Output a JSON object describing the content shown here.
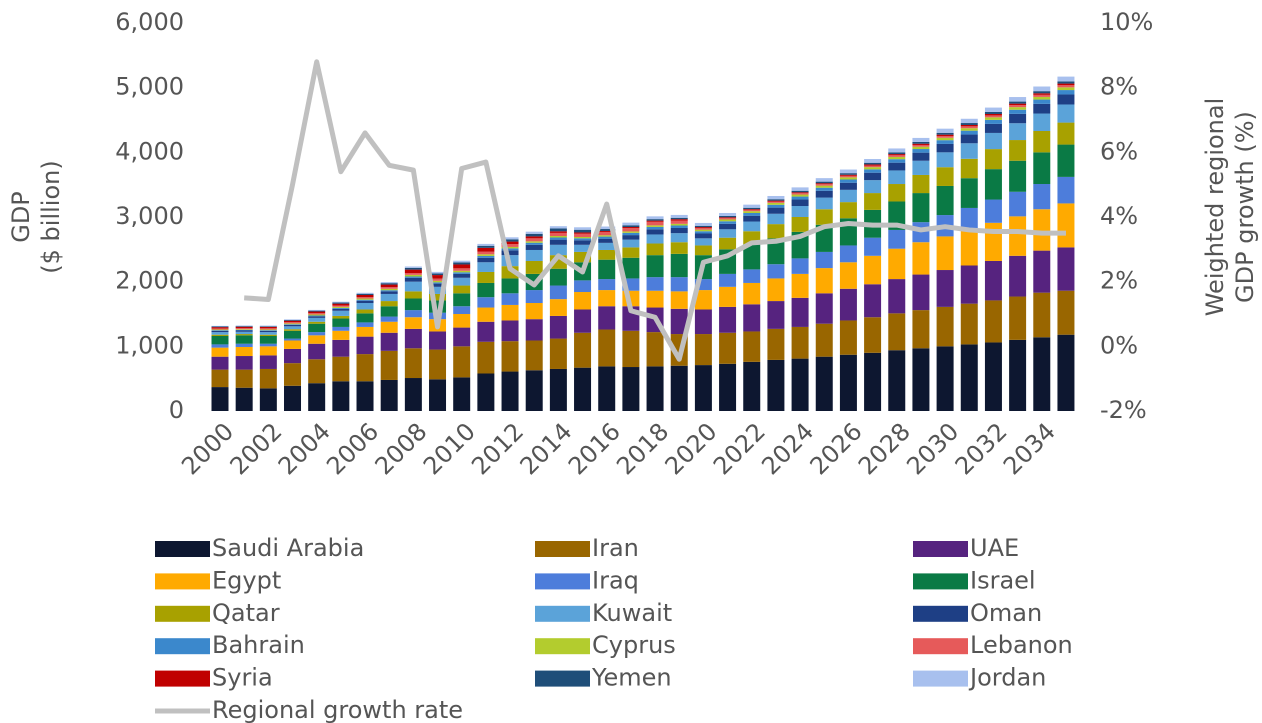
{
  "chart_data": {
    "type": "stacked-bar-line",
    "ylabel": [
      "GDP",
      "($ billion)"
    ],
    "y2label": [
      "Weighted regional",
      "GDP growth (%)"
    ],
    "categories": [
      "2000",
      null,
      "2002",
      null,
      "2004",
      null,
      "2006",
      null,
      "2008",
      null,
      "2010",
      null,
      "2012",
      null,
      "2014",
      null,
      "2016",
      null,
      "2018",
      null,
      "2020",
      null,
      "2022",
      null,
      "2024",
      null,
      "2026",
      null,
      "2028",
      null,
      "2030",
      null,
      "2032",
      null,
      "2034",
      null
    ],
    "ylim": [
      0,
      6000
    ],
    "yticks": [
      0,
      {
        "value": 1000,
        "label": "1,000"
      },
      {
        "value": 2000,
        "label": "2,000"
      },
      {
        "value": 3000,
        "label": "3,000"
      },
      {
        "value": 4000,
        "label": "4,000"
      },
      {
        "value": 5000,
        "label": "5,000"
      },
      {
        "value": 6000,
        "label": "6,000"
      }
    ],
    "y2lim": [
      -2,
      10
    ],
    "y2ticks": [
      {
        "value": -2,
        "label": "-2%"
      },
      {
        "value": 0,
        "label": "0%"
      },
      {
        "value": 2,
        "label": "2%"
      },
      {
        "value": 4,
        "label": "4%"
      },
      {
        "value": 6,
        "label": "6%"
      },
      {
        "value": 8,
        "label": "8%"
      },
      {
        "value": 10,
        "label": "10%"
      }
    ],
    "series": [
      {
        "name": "Saudi Arabia",
        "color": "#0d1730",
        "values": [
          370,
          360,
          350,
          390,
          430,
          460,
          460,
          480,
          510,
          490,
          520,
          580,
          610,
          630,
          650,
          670,
          690,
          680,
          690,
          700,
          710,
          730,
          760,
          790,
          810,
          840,
          870,
          900,
          940,
          970,
          1000,
          1030,
          1060,
          1100,
          1140,
          1180
        ]
      },
      {
        "name": "Iran",
        "color": "#996600",
        "values": [
          270,
          280,
          300,
          350,
          370,
          380,
          420,
          450,
          460,
          460,
          480,
          490,
          470,
          460,
          470,
          540,
          570,
          560,
          530,
          490,
          480,
          480,
          470,
          480,
          490,
          510,
          530,
          550,
          570,
          590,
          610,
          630,
          650,
          670,
          690,
          680
        ]
      },
      {
        "name": "UAE",
        "color": "#56237f",
        "values": [
          200,
          210,
          210,
          220,
          240,
          260,
          270,
          280,
          300,
          280,
          290,
          310,
          320,
          330,
          350,
          360,
          360,
          380,
          380,
          390,
          380,
          400,
          420,
          430,
          450,
          470,
          490,
          510,
          530,
          550,
          570,
          590,
          610,
          630,
          650,
          670
        ]
      },
      {
        "name": "Egypt",
        "color": "#ffaa00",
        "values": [
          140,
          140,
          140,
          130,
          130,
          140,
          150,
          170,
          180,
          190,
          210,
          220,
          240,
          250,
          260,
          270,
          250,
          240,
          260,
          270,
          300,
          310,
          330,
          350,
          370,
          390,
          410,
          440,
          470,
          500,
          520,
          550,
          590,
          610,
          640,
          680
        ]
      },
      {
        "name": "Iraq",
        "color": "#4d7ddb",
        "values": [
          50,
          50,
          40,
          30,
          50,
          60,
          70,
          80,
          110,
          100,
          120,
          160,
          180,
          200,
          210,
          180,
          170,
          190,
          210,
          220,
          170,
          200,
          210,
          220,
          240,
          250,
          260,
          280,
          290,
          310,
          330,
          340,
          360,
          380,
          390,
          410
        ]
      },
      {
        "name": "Israel",
        "color": "#0a7a45",
        "values": [
          130,
          130,
          120,
          120,
          130,
          130,
          140,
          160,
          180,
          190,
          200,
          220,
          230,
          250,
          260,
          280,
          300,
          320,
          340,
          360,
          370,
          380,
          390,
          400,
          410,
          420,
          420,
          430,
          440,
          450,
          450,
          460,
          470,
          480,
          490,
          500
        ]
      },
      {
        "name": "Qatar",
        "color": "#a8a100",
        "values": [
          20,
          20,
          20,
          25,
          30,
          40,
          60,
          80,
          110,
          100,
          120,
          170,
          190,
          200,
          210,
          160,
          150,
          160,
          180,
          180,
          150,
          180,
          200,
          220,
          230,
          240,
          250,
          260,
          270,
          280,
          290,
          300,
          310,
          320,
          330,
          340
        ]
      },
      {
        "name": "Kuwait",
        "color": "#5ba3d9",
        "values": [
          40,
          35,
          40,
          45,
          60,
          80,
          100,
          110,
          150,
          110,
          120,
          150,
          170,
          170,
          160,
          110,
          110,
          120,
          140,
          140,
          110,
          130,
          150,
          160,
          170,
          180,
          190,
          200,
          210,
          220,
          230,
          240,
          250,
          260,
          270,
          280
        ]
      },
      {
        "name": "Oman",
        "color": "#1e3f85",
        "values": [
          20,
          20,
          20,
          22,
          25,
          30,
          35,
          40,
          60,
          50,
          60,
          70,
          75,
          80,
          80,
          70,
          65,
          70,
          80,
          80,
          75,
          85,
          90,
          95,
          100,
          105,
          110,
          115,
          120,
          125,
          130,
          135,
          140,
          145,
          150,
          155
        ]
      },
      {
        "name": "Bahrain",
        "color": "#3b88cc",
        "values": [
          10,
          10,
          10,
          10,
          12,
          14,
          16,
          18,
          20,
          20,
          25,
          28,
          30,
          32,
          33,
          31,
          32,
          35,
          37,
          39,
          35,
          39,
          42,
          44,
          46,
          48,
          50,
          52,
          54,
          56,
          58,
          60,
          62,
          64,
          66,
          68
        ]
      },
      {
        "name": "Cyprus",
        "color": "#b3cc2e",
        "values": [
          10,
          10,
          11,
          13,
          16,
          17,
          18,
          22,
          25,
          23,
          23,
          25,
          22,
          22,
          23,
          20,
          21,
          22,
          24,
          25,
          24,
          28,
          28,
          30,
          31,
          32,
          33,
          34,
          35,
          36,
          37,
          38,
          39,
          40,
          41,
          42
        ]
      },
      {
        "name": "Lebanon",
        "color": "#e65a5a",
        "values": [
          17,
          17,
          18,
          19,
          20,
          21,
          22,
          25,
          29,
          35,
          38,
          40,
          43,
          46,
          48,
          50,
          51,
          53,
          55,
          52,
          25,
          22,
          20,
          21,
          22,
          23,
          24,
          25,
          26,
          27,
          28,
          29,
          30,
          31,
          32,
          33
        ]
      },
      {
        "name": "Syria",
        "color": "#c00000",
        "values": [
          20,
          21,
          22,
          22,
          25,
          28,
          33,
          40,
          52,
          54,
          60,
          60,
          40,
          30,
          25,
          20,
          15,
          15,
          18,
          20,
          15,
          12,
          12,
          13,
          14,
          15,
          16,
          17,
          18,
          19,
          20,
          21,
          22,
          23,
          24,
          25
        ]
      },
      {
        "name": "Yemen",
        "color": "#1f4e79",
        "values": [
          10,
          10,
          10,
          11,
          14,
          17,
          19,
          22,
          27,
          25,
          31,
          32,
          35,
          40,
          43,
          42,
          30,
          27,
          23,
          22,
          20,
          20,
          21,
          22,
          23,
          24,
          25,
          26,
          27,
          28,
          29,
          30,
          31,
          32,
          33,
          34
        ]
      },
      {
        "name": "Jordan",
        "color": "#a8c0ee",
        "values": [
          9,
          9,
          10,
          10,
          11,
          13,
          15,
          17,
          22,
          24,
          27,
          29,
          31,
          33,
          36,
          38,
          39,
          41,
          43,
          44,
          44,
          46,
          48,
          50,
          52,
          54,
          56,
          58,
          60,
          62,
          64,
          66,
          68,
          70,
          72,
          74
        ]
      },
      {
        "name": "Regional growth rate",
        "color": "#c0c0c0",
        "axis": "y2",
        "type": "line",
        "values": [
          null,
          1.5,
          1.45,
          5.0,
          8.8,
          5.4,
          6.6,
          5.6,
          5.45,
          0.6,
          5.5,
          5.7,
          2.4,
          1.9,
          2.8,
          2.3,
          4.4,
          1.1,
          0.9,
          -0.4,
          2.6,
          2.8,
          3.2,
          3.25,
          3.4,
          3.7,
          3.8,
          3.75,
          3.75,
          3.6,
          3.7,
          3.6,
          3.55,
          3.55,
          3.5,
          3.5
        ]
      }
    ]
  }
}
